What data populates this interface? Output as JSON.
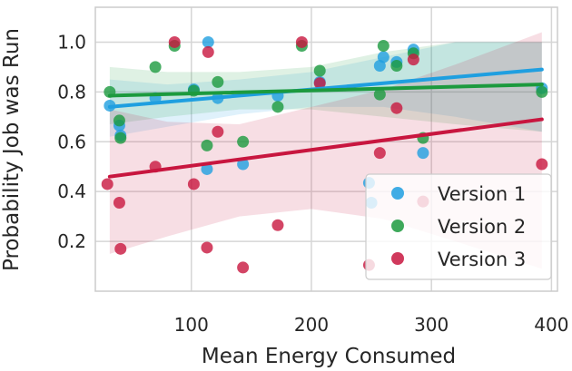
{
  "chart_data": {
    "type": "scatter",
    "title": "",
    "xlabel": "Mean Energy Consumed",
    "ylabel": "Probability Job was Run",
    "xlim": [
      20,
      405
    ],
    "ylim": [
      0.0,
      1.14
    ],
    "xticks": [
      100,
      200,
      300,
      400
    ],
    "yticks": [
      0.2,
      0.4,
      0.6,
      0.8,
      1.0
    ],
    "xtick_labels": [
      "100",
      "200",
      "300",
      "400"
    ],
    "ytick_labels": [
      "0.2",
      "0.4",
      "0.6",
      "0.8",
      "1.0"
    ],
    "grid": true,
    "legend_position": "bottom-right",
    "series": [
      {
        "name": "Version 1",
        "color": "#1f9fe0",
        "points": [
          [
            32,
            0.745
          ],
          [
            40,
            0.665
          ],
          [
            41,
            0.625
          ],
          [
            70,
            0.775
          ],
          [
            102,
            0.81
          ],
          [
            113,
            0.49
          ],
          [
            114,
            1.0
          ],
          [
            122,
            0.775
          ],
          [
            143,
            0.51
          ],
          [
            172,
            0.785
          ],
          [
            207,
            0.84
          ],
          [
            248,
            0.435
          ],
          [
            250,
            0.355
          ],
          [
            257,
            0.905
          ],
          [
            260,
            0.94
          ],
          [
            271,
            0.92
          ],
          [
            285,
            0.97
          ],
          [
            293,
            0.555
          ],
          [
            392,
            0.815
          ]
        ],
        "fit": {
          "x": [
            32,
            392
          ],
          "y": [
            0.74,
            0.89
          ]
        },
        "ci": {
          "x": [
            32,
            80,
            140,
            200,
            260,
            320,
            392
          ],
          "lower": [
            0.62,
            0.66,
            0.71,
            0.74,
            0.74,
            0.7,
            0.64
          ],
          "upper": [
            0.85,
            0.83,
            0.85,
            0.88,
            0.94,
            1.0,
            1.0
          ]
        }
      },
      {
        "name": "Version 2",
        "color": "#1c9a3e",
        "points": [
          [
            32,
            0.8
          ],
          [
            40,
            0.685
          ],
          [
            41,
            0.615
          ],
          [
            70,
            0.9
          ],
          [
            86,
            0.985
          ],
          [
            102,
            0.805
          ],
          [
            113,
            0.585
          ],
          [
            122,
            0.84
          ],
          [
            143,
            0.6
          ],
          [
            172,
            0.74
          ],
          [
            192,
            0.985
          ],
          [
            207,
            0.885
          ],
          [
            257,
            0.79
          ],
          [
            260,
            0.985
          ],
          [
            271,
            0.905
          ],
          [
            285,
            0.955
          ],
          [
            293,
            0.615
          ],
          [
            392,
            0.8
          ]
        ],
        "fit": {
          "x": [
            32,
            392
          ],
          "y": [
            0.785,
            0.83
          ]
        },
        "ci": {
          "x": [
            32,
            80,
            140,
            200,
            260,
            320,
            392
          ],
          "lower": [
            0.67,
            0.7,
            0.73,
            0.73,
            0.7,
            0.67,
            0.64
          ],
          "upper": [
            0.9,
            0.88,
            0.88,
            0.9,
            0.96,
            1.0,
            1.0
          ]
        }
      },
      {
        "name": "Version 3",
        "color": "#c8163f",
        "points": [
          [
            30,
            0.43
          ],
          [
            40,
            0.355
          ],
          [
            41,
            0.17
          ],
          [
            70,
            0.5
          ],
          [
            86,
            1.0
          ],
          [
            102,
            0.43
          ],
          [
            113,
            0.175
          ],
          [
            114,
            0.96
          ],
          [
            122,
            0.64
          ],
          [
            143,
            0.095
          ],
          [
            172,
            0.265
          ],
          [
            192,
            1.0
          ],
          [
            207,
            0.835
          ],
          [
            248,
            0.105
          ],
          [
            257,
            0.555
          ],
          [
            271,
            0.735
          ],
          [
            285,
            0.93
          ],
          [
            293,
            0.36
          ],
          [
            392,
            0.51
          ]
        ],
        "fit": {
          "x": [
            32,
            392
          ],
          "y": [
            0.46,
            0.69
          ]
        },
        "ci": {
          "x": [
            32,
            80,
            140,
            200,
            260,
            320,
            392
          ],
          "lower": [
            0.15,
            0.22,
            0.3,
            0.33,
            0.29,
            0.2,
            0.09
          ],
          "upper": [
            0.73,
            0.68,
            0.67,
            0.74,
            0.81,
            0.91,
            1.04
          ]
        }
      }
    ]
  }
}
